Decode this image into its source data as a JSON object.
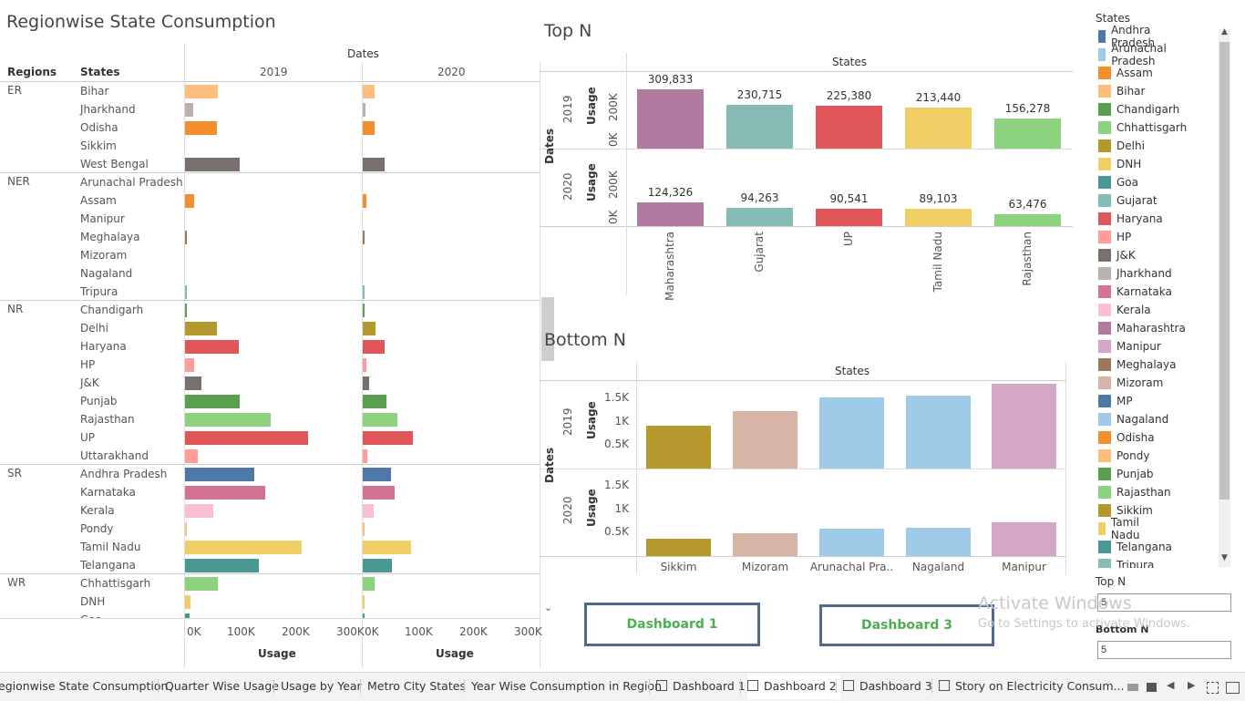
{
  "left": {
    "title": "Regionwise State Consumption",
    "dates_header": "Dates",
    "col_regions": "Regions",
    "col_states": "States",
    "year_2019": "2019",
    "year_2020": "2020",
    "axis_ticks_2019": [
      "0K",
      "100K",
      "200K",
      "300K"
    ],
    "axis_ticks_2020": [
      "0K",
      "100K",
      "200K",
      "300K"
    ],
    "axis_label": "Usage",
    "regions": [
      {
        "name": "ER",
        "states": [
          {
            "name": "Bihar",
            "v2019": 60,
            "v2020": 22,
            "color": "#ffbe7d"
          },
          {
            "name": "Jharkhand",
            "v2019": 15,
            "v2020": 5,
            "color": "#bab0ac"
          },
          {
            "name": "Odisha",
            "v2019": 58,
            "v2020": 22,
            "color": "#f28e2b"
          },
          {
            "name": "Sikkim",
            "v2019": 0,
            "v2020": 0,
            "color": "#b6992d"
          },
          {
            "name": "West Bengal",
            "v2019": 100,
            "v2020": 40,
            "color": "#79706e"
          }
        ]
      },
      {
        "name": "NER",
        "states": [
          {
            "name": "Arunachal Pradesh",
            "v2019": 0,
            "v2020": 0,
            "color": "#a0cbe8"
          },
          {
            "name": "Assam",
            "v2019": 17,
            "v2020": 6,
            "color": "#f28e2b"
          },
          {
            "name": "Manipur",
            "v2019": 0,
            "v2020": 0,
            "color": "#d4a6c8"
          },
          {
            "name": "Meghalaya",
            "v2019": 2,
            "v2020": 1,
            "color": "#9d7660"
          },
          {
            "name": "Mizoram",
            "v2019": 0,
            "v2020": 0,
            "color": "#d7b5a6"
          },
          {
            "name": "Nagaland",
            "v2019": 0,
            "v2020": 0,
            "color": "#a0cbe8"
          },
          {
            "name": "Tripura",
            "v2019": 2,
            "v2020": 1,
            "color": "#86bcb6"
          }
        ]
      },
      {
        "name": "NR",
        "states": [
          {
            "name": "Chandigarh",
            "v2019": 1,
            "v2020": 1,
            "color": "#59a14f"
          },
          {
            "name": "Delhi",
            "v2019": 58,
            "v2020": 24,
            "color": "#b6992d"
          },
          {
            "name": "Haryana",
            "v2019": 98,
            "v2020": 40,
            "color": "#e15759"
          },
          {
            "name": "HP",
            "v2019": 17,
            "v2020": 7,
            "color": "#ff9d9a"
          },
          {
            "name": "J&K",
            "v2019": 30,
            "v2020": 12,
            "color": "#79706e"
          },
          {
            "name": "Punjab",
            "v2019": 100,
            "v2020": 43,
            "color": "#59a14f"
          },
          {
            "name": "Rajasthan",
            "v2019": 156,
            "v2020": 63,
            "color": "#8cd17d"
          },
          {
            "name": "UP",
            "v2019": 225,
            "v2020": 91,
            "color": "#e15759"
          },
          {
            "name": "Uttarakhand",
            "v2019": 24,
            "v2020": 9,
            "color": "#ff9d9a"
          }
        ]
      },
      {
        "name": "SR",
        "states": [
          {
            "name": "Andhra Pradesh",
            "v2019": 127,
            "v2020": 52,
            "color": "#4e79a7"
          },
          {
            "name": "Karnataka",
            "v2019": 147,
            "v2020": 58,
            "color": "#d37295"
          },
          {
            "name": "Kerala",
            "v2019": 51,
            "v2020": 20,
            "color": "#fabfd2"
          },
          {
            "name": "Pondy",
            "v2019": 4,
            "v2020": 1,
            "color": "#ffbe7d"
          },
          {
            "name": "Tamil Nadu",
            "v2019": 213,
            "v2020": 89,
            "color": "#f1ce63"
          },
          {
            "name": "Telangana",
            "v2019": 135,
            "v2020": 53,
            "color": "#499894"
          }
        ]
      },
      {
        "name": "WR",
        "states": [
          {
            "name": "Chhattisgarh",
            "v2019": 60,
            "v2020": 22,
            "color": "#8cd17d"
          },
          {
            "name": "DNH",
            "v2019": 10,
            "v2020": 4,
            "color": "#f1ce63"
          },
          {
            "name": "Goa",
            "v2019": 8,
            "v2020": 3,
            "color": "#499894"
          }
        ]
      }
    ]
  },
  "topn": {
    "title": "Top N",
    "states_header": "States",
    "dates_label": "Dates",
    "usage_label": "Usage",
    "tick_200k": "200K",
    "tick_0k": "0K",
    "row_2019": "2019",
    "row_2020": "2020",
    "states": [
      "Maharashtra",
      "Gujarat",
      "UP",
      "Tamil Nadu",
      "Rajasthan"
    ],
    "colors": [
      "#b07aa1",
      "#86bcb6",
      "#e15759",
      "#f1ce63",
      "#8cd17d"
    ],
    "values_2019": [
      309833,
      230715,
      225380,
      213440,
      156278
    ],
    "labels_2019": [
      "309,833",
      "230,715",
      "225,380",
      "213,440",
      "156,278"
    ],
    "values_2020": [
      124326,
      94263,
      90541,
      89103,
      63476
    ],
    "labels_2020": [
      "124,326",
      "94,263",
      "90,541",
      "89,103",
      "63,476"
    ]
  },
  "bottomn": {
    "title": "Bottom  N",
    "states_header": "States",
    "dates_label": "Dates",
    "usage_label": "Usage",
    "ticks": [
      "1.5K",
      "1K",
      "0.5K"
    ],
    "row_2019": "2019",
    "row_2020": "2020",
    "states": [
      "Sikkim",
      "Mizoram",
      "Arunachal Pra..",
      "Nagaland",
      "Manipur"
    ],
    "colors": [
      "#b6992d",
      "#d7b5a6",
      "#a0cbe8",
      "#a0cbe8",
      "#d4a6c8"
    ],
    "values_2019": [
      910,
      1220,
      1510,
      1550,
      1800
    ],
    "values_2020": [
      360,
      480,
      590,
      600,
      720
    ]
  },
  "legend": {
    "title": "States",
    "items": [
      {
        "label": "Andhra Pradesh",
        "color": "#4e79a7"
      },
      {
        "label": "Arunachal Pradesh",
        "color": "#a0cbe8"
      },
      {
        "label": "Assam",
        "color": "#f28e2b"
      },
      {
        "label": "Bihar",
        "color": "#ffbe7d"
      },
      {
        "label": "Chandigarh",
        "color": "#59a14f"
      },
      {
        "label": "Chhattisgarh",
        "color": "#8cd17d"
      },
      {
        "label": "Delhi",
        "color": "#b6992d"
      },
      {
        "label": "DNH",
        "color": "#f1ce63"
      },
      {
        "label": "Goa",
        "color": "#499894"
      },
      {
        "label": "Gujarat",
        "color": "#86bcb6"
      },
      {
        "label": "Haryana",
        "color": "#e15759"
      },
      {
        "label": "HP",
        "color": "#ff9d9a"
      },
      {
        "label": "J&K",
        "color": "#79706e"
      },
      {
        "label": "Jharkhand",
        "color": "#bab0ac"
      },
      {
        "label": "Karnataka",
        "color": "#d37295"
      },
      {
        "label": "Kerala",
        "color": "#fabfd2"
      },
      {
        "label": "Maharashtra",
        "color": "#b07aa1"
      },
      {
        "label": "Manipur",
        "color": "#d4a6c8"
      },
      {
        "label": "Meghalaya",
        "color": "#9d7660"
      },
      {
        "label": "Mizoram",
        "color": "#d7b5a6"
      },
      {
        "label": "MP",
        "color": "#4e79a7"
      },
      {
        "label": "Nagaland",
        "color": "#a0cbe8"
      },
      {
        "label": "Odisha",
        "color": "#f28e2b"
      },
      {
        "label": "Pondy",
        "color": "#ffbe7d"
      },
      {
        "label": "Punjab",
        "color": "#59a14f"
      },
      {
        "label": "Rajasthan",
        "color": "#8cd17d"
      },
      {
        "label": "Sikkim",
        "color": "#b6992d"
      },
      {
        "label": "Tamil Nadu",
        "color": "#f1ce63"
      },
      {
        "label": "Telangana",
        "color": "#499894"
      },
      {
        "label": "Tripura",
        "color": "#86bcb6"
      }
    ]
  },
  "params": {
    "top_n_label": "Top N",
    "top_n_value": "5",
    "bottom_n_label": "Bottom N",
    "bottom_n_value": "5"
  },
  "buttons": {
    "dashboard1": "Dashboard 1",
    "dashboard3": "Dashboard 3"
  },
  "watermark": {
    "line1": "Activate Windows",
    "line2": "Go to Settings to activate Windows."
  },
  "tabs": [
    {
      "label": "egionwise State Consumption",
      "icon": ""
    },
    {
      "label": "Quarter Wise Usage",
      "icon": ""
    },
    {
      "label": "Usage by Year",
      "icon": ""
    },
    {
      "label": "Metro City States",
      "icon": ""
    },
    {
      "label": "Year Wise Consumption in Region",
      "icon": ""
    },
    {
      "label": "Dashboard 1",
      "icon": "dashboard-icon"
    },
    {
      "label": "Dashboard 2",
      "icon": "dashboard-icon",
      "active": true
    },
    {
      "label": "Dashboard 3",
      "icon": "dashboard-icon"
    },
    {
      "label": "Story on Electricity Consum...",
      "icon": "story-icon"
    }
  ]
}
